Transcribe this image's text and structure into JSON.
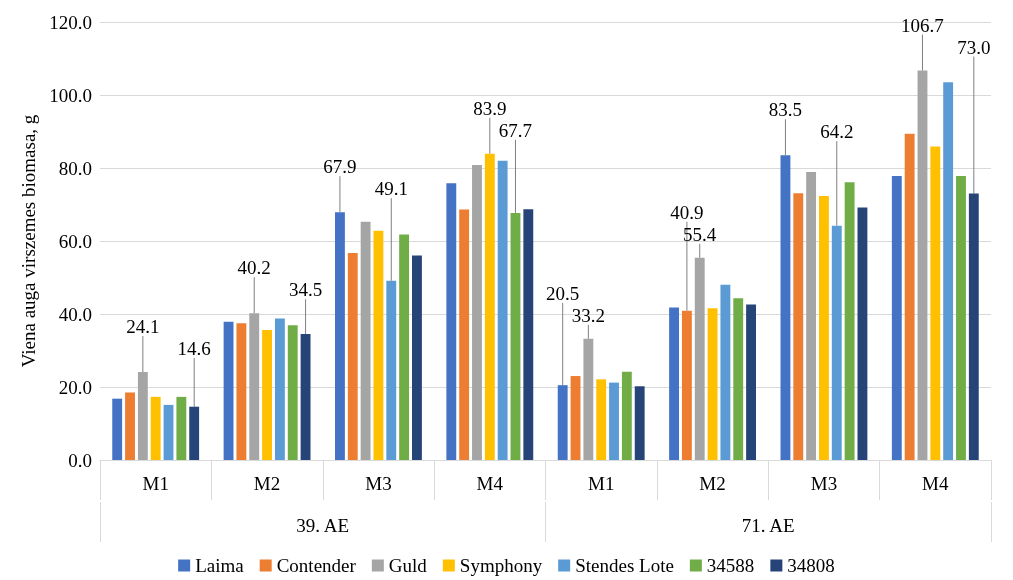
{
  "chart_data": {
    "type": "bar",
    "ylabel": "Viena auga virszemes biomasa, g",
    "categories": [
      "M1",
      "M2",
      "M3",
      "M4",
      "M1",
      "M2",
      "M3",
      "M4"
    ],
    "annotations": [
      "39. AE",
      "71. AE"
    ],
    "series": [
      {
        "name": "Laima",
        "color": "#4472c4",
        "values": [
          16.8,
          37.9,
          67.9,
          75.8,
          20.5,
          41.8,
          83.5,
          77.8
        ],
        "value_labels": [
          null,
          null,
          "67.9",
          null,
          "20.5",
          null,
          "83.5",
          null
        ]
      },
      {
        "name": "Contender",
        "color": "#ed7d31",
        "values": [
          18.5,
          37.5,
          56.7,
          68.6,
          23.0,
          40.9,
          73.1,
          89.4
        ],
        "value_labels": [
          null,
          null,
          null,
          null,
          null,
          "40.9",
          null,
          null
        ]
      },
      {
        "name": "Guld",
        "color": "#a5a5a5",
        "values": [
          24.1,
          40.2,
          65.3,
          80.8,
          33.2,
          55.4,
          78.9,
          106.7
        ],
        "value_labels": [
          "24.1",
          "40.2",
          null,
          null,
          "33.2",
          "55.4",
          null,
          "106.7"
        ]
      },
      {
        "name": "Symphony",
        "color": "#ffc000",
        "values": [
          17.3,
          35.6,
          62.8,
          83.9,
          22.1,
          41.6,
          72.3,
          85.9
        ],
        "value_labels": [
          null,
          null,
          null,
          "83.9",
          null,
          null,
          null,
          null
        ]
      },
      {
        "name": "Stendes Lote",
        "color": "#5b9bd5",
        "values": [
          15.1,
          38.8,
          49.1,
          82.0,
          21.2,
          48.0,
          64.2,
          103.5
        ],
        "value_labels": [
          null,
          null,
          "49.1",
          null,
          null,
          null,
          "64.2",
          null
        ]
      },
      {
        "name": "34588",
        "color": "#70ad47",
        "values": [
          17.3,
          36.9,
          61.8,
          67.7,
          24.2,
          44.3,
          76.1,
          77.8
        ],
        "value_labels": [
          null,
          null,
          null,
          "67.7",
          null,
          null,
          null,
          null
        ]
      },
      {
        "name": "34808",
        "color": "#264478",
        "values": [
          14.6,
          34.5,
          56.0,
          68.7,
          20.2,
          42.6,
          69.2,
          73.0
        ],
        "value_labels": [
          "14.6",
          "34.5",
          null,
          null,
          null,
          null,
          null,
          "73.0"
        ]
      }
    ],
    "ylim": [
      0,
      120
    ],
    "yticks": [
      {
        "value": 0,
        "label": "0.0"
      },
      {
        "value": 20,
        "label": "20.0"
      },
      {
        "value": 40,
        "label": "40.0"
      },
      {
        "value": 60,
        "label": "60.0"
      },
      {
        "value": 80,
        "label": "80.0"
      },
      {
        "value": 100,
        "label": "100.0"
      },
      {
        "value": 120,
        "label": "120.0"
      }
    ],
    "grid": "y",
    "legend": "bottom"
  }
}
